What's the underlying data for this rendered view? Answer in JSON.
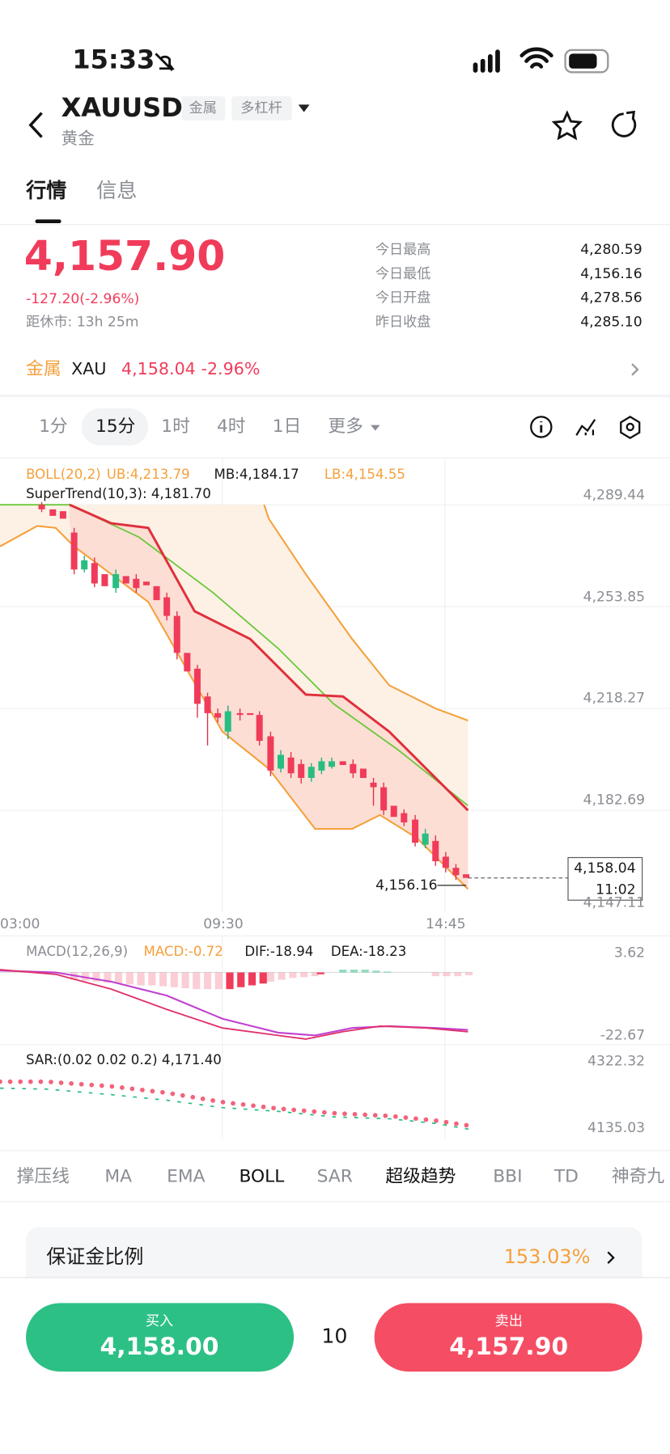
{
  "status_bar": {
    "time": "15:33"
  },
  "header": {
    "symbol": "XAUUSD",
    "tags": [
      "金属",
      "多杠杆"
    ],
    "name": "黄金"
  },
  "tabs": [
    "行情",
    "信息"
  ],
  "quote": {
    "price": "4,157.90",
    "change": "-127.20(-2.96%)",
    "close_countdown": "距休市: 13h 25m",
    "stats": [
      {
        "label": "今日最高",
        "value": "4,280.59"
      },
      {
        "label": "今日最低",
        "value": "4,156.16"
      },
      {
        "label": "今日开盘",
        "value": "4,278.56"
      },
      {
        "label": "昨日收盘",
        "value": "4,285.10"
      }
    ]
  },
  "related": {
    "category": "金属",
    "symbol": "XAU",
    "price": "4,158.04",
    "change": "-2.96%"
  },
  "intervals": [
    "1分",
    "15分",
    "1时",
    "4时",
    "1日",
    "更多"
  ],
  "main_chart": {
    "legend": [
      "BOLL(20,2)",
      "UB:4,213.79",
      "MB:4,184.17",
      "LB:4,154.55"
    ],
    "supertrend": "SuperTrend(10,3): 4,181.70",
    "price_axis": [
      "4,289.44",
      "4,253.85",
      "4,218.27",
      "4,182.69",
      "4,147.11"
    ],
    "time_axis": [
      "03:00",
      "09:30",
      "14:45"
    ],
    "low_marker": "4,156.16",
    "last_price": "4,158.04",
    "countdown": "11:02"
  },
  "macd": {
    "legend": [
      "MACD(12,26,9)",
      "MACD:-0.72",
      "DIF:-18.94",
      "DEA:-18.23"
    ],
    "axis": [
      "3.62",
      "-22.67"
    ]
  },
  "sar": {
    "legend": "SAR:(0.02 0.02 0.2) 4,171.40",
    "axis": [
      "4322.32",
      "4135.03"
    ]
  },
  "indicators": [
    "撑压线",
    "MA",
    "EMA",
    "BOLL",
    "SAR",
    "超级趋势",
    "BBI",
    "TD",
    "神奇九"
  ],
  "margin": {
    "label": "保证金比例",
    "value": "153.03%"
  },
  "trade": {
    "buy_label": "买入",
    "buy_price": "4,158.00",
    "quantity": "10",
    "sell_label": "卖出",
    "sell_price": "4,157.90"
  }
}
